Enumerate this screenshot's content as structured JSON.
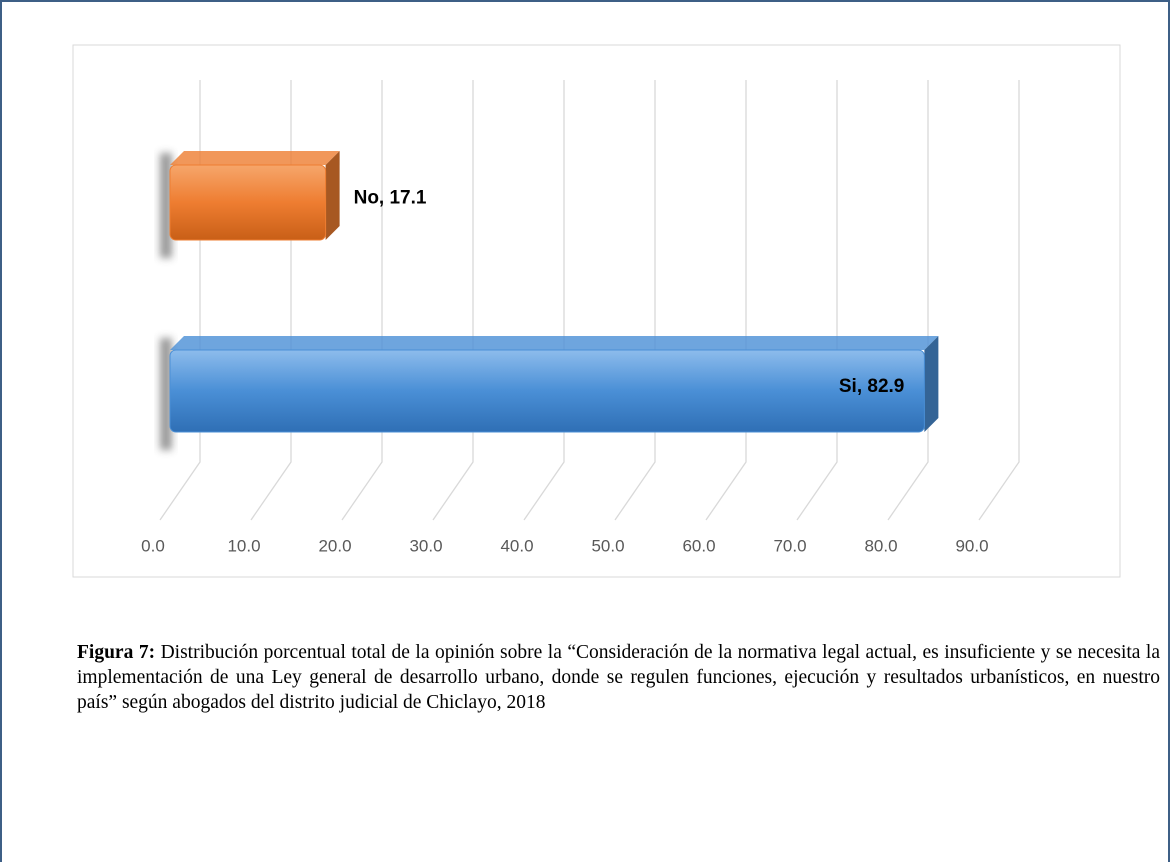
{
  "chart_data": {
    "type": "bar",
    "orientation": "horizontal",
    "values": [
      82.9,
      17.1
    ],
    "value_labels": [
      "Si, 82.9",
      "No, 17.1"
    ],
    "colors": [
      "#4a8fd6",
      "#ee7d31"
    ],
    "xlim": [
      0,
      90
    ],
    "xticks": [
      {
        "value": 0,
        "label": "0.0"
      },
      {
        "value": 10,
        "label": "10.0"
      },
      {
        "value": 20,
        "label": "20.0"
      },
      {
        "value": 30,
        "label": "30.0"
      },
      {
        "value": 40,
        "label": "40.0"
      },
      {
        "value": 50,
        "label": "50.0"
      },
      {
        "value": 60,
        "label": "60.0"
      },
      {
        "value": 70,
        "label": "70.0"
      },
      {
        "value": 80,
        "label": "80.0"
      },
      {
        "value": 90,
        "label": "90.0"
      }
    ],
    "grid": true
  },
  "caption": {
    "label": "Figura 7:",
    "text": "Distribución porcentual total de la opinión sobre la “Consideración de la normativa legal actual, es insuficiente y se necesita la implementación de una Ley general de desarrollo urbano, donde se regulen funciones, ejecución y resultados urbanísticos, en nuestro país” según abogados del distrito judicial de Chiclayo, 2018"
  }
}
